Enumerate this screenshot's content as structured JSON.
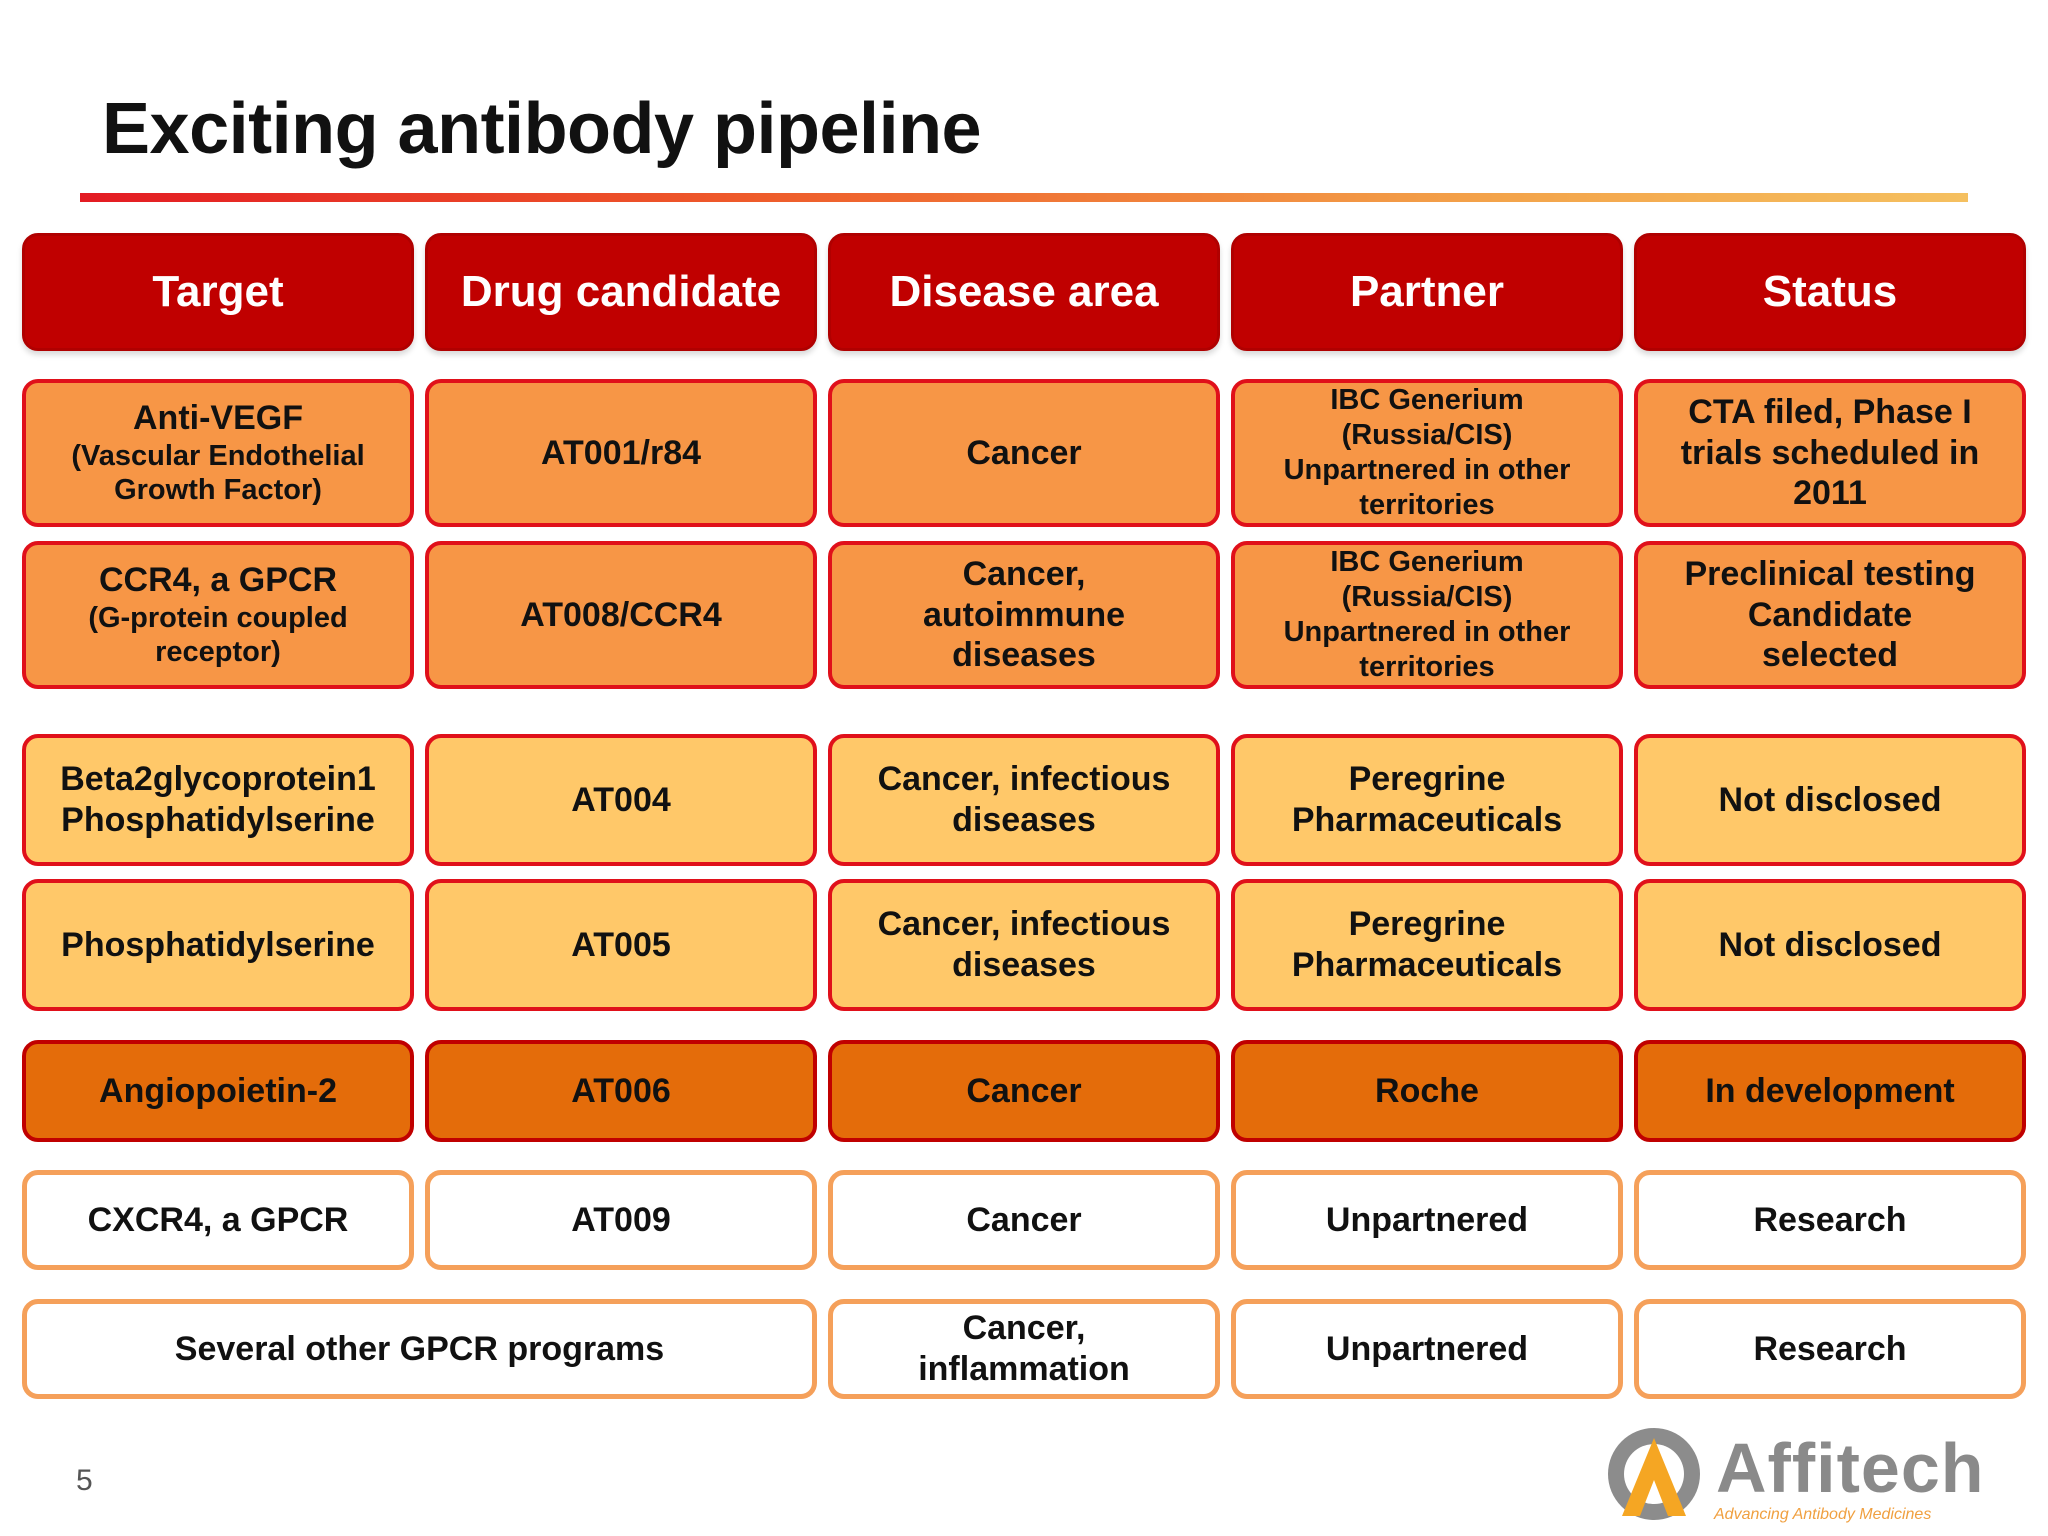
{
  "title": "Exciting antibody pipeline",
  "headers": [
    "Target",
    "Drug candidate",
    "Disease area",
    "Partner",
    "Status"
  ],
  "rows": [
    [
      "Anti-VEGF",
      "(Vascular Endothelial Growth Factor)",
      "AT001/r84",
      "Cancer",
      "IBC Generium (Russia/CIS) Unpartnered in other territories",
      "CTA filed, Phase I trials scheduled in 2011"
    ],
    [
      "CCR4, a GPCR",
      "(G-protein coupled receptor)",
      "AT008/CCR4",
      "Cancer, autoimmune diseases",
      "IBC Generium (Russia/CIS) Unpartnered in other territories",
      "Preclinical testing Candidate selected"
    ],
    [
      "Beta2glycoprotein1 Phosphatidylserine",
      "AT004",
      "Cancer, infectious diseases",
      "Peregrine Pharmaceuticals",
      "Not disclosed"
    ],
    [
      "Phosphatidylserine",
      "AT005",
      "Cancer, infectious diseases",
      "Peregrine Pharmaceuticals",
      "Not disclosed"
    ],
    [
      "Angiopoietin-2",
      "AT006",
      "Cancer",
      "Roche",
      "In development"
    ],
    [
      "CXCR4, a GPCR",
      "AT009",
      "Cancer",
      "Unpartnered",
      "Research"
    ],
    [
      "Several other GPCR programs",
      "Cancer, inflammation",
      "Unpartnered",
      "Research"
    ]
  ],
  "page_number": "5",
  "logo": {
    "name": "Affitech",
    "tagline": "Advancing Antibody Medicines"
  },
  "colors": {
    "header": "#c00000",
    "tier1": "#f79646",
    "tier2": "#ffc869",
    "tier3": "#e46c0a",
    "tier4": "#ffffff",
    "rule_start": "#e31b23",
    "rule_end": "#f5c060"
  }
}
